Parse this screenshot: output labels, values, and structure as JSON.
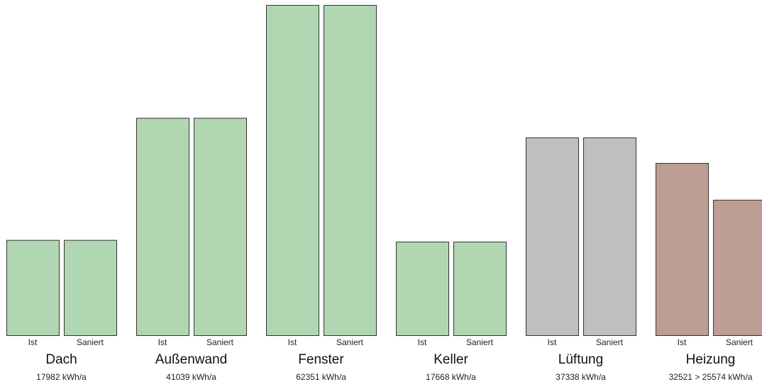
{
  "chart_data": {
    "type": "bar",
    "bar_labels": [
      "Ist",
      "Saniert"
    ],
    "groups": [
      {
        "name": "Dach",
        "values": [
          17982,
          17982
        ],
        "value_label": "17982 kWh/a",
        "color": "#b1d7b2"
      },
      {
        "name": "Außenwand",
        "values": [
          41039,
          41039
        ],
        "value_label": "41039 kWh/a",
        "color": "#b1d7b2"
      },
      {
        "name": "Fenster",
        "values": [
          62351,
          62351
        ],
        "value_label": "62351 kWh/a",
        "color": "#b1d7b2"
      },
      {
        "name": "Keller",
        "values": [
          17668,
          17668
        ],
        "value_label": "17668 kWh/a",
        "color": "#b1d7b2"
      },
      {
        "name": "Lüftung",
        "values": [
          37338,
          37338
        ],
        "value_label": "37338 kWh/a",
        "color": "#bfbfbf"
      },
      {
        "name": "Heizung",
        "values": [
          32521,
          25574
        ],
        "value_label": "32521 > 25574 kWh/a",
        "color": "#bd9e94"
      }
    ],
    "ylim": [
      0,
      62351
    ],
    "grid": false,
    "legend": "none"
  }
}
